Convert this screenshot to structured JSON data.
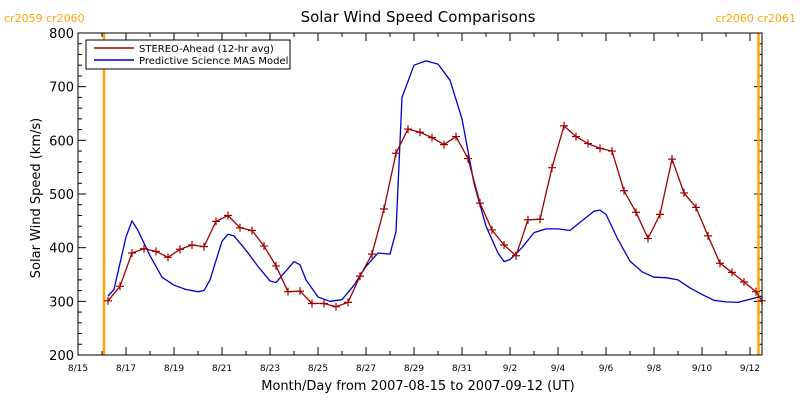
{
  "chart_data": {
    "type": "line",
    "title": "Solar Wind Speed Comparisons",
    "xlabel": "Month/Day from 2007-08-15 to 2007-09-12 (UT)",
    "ylabel": "Solar Wind Speed (km/s)",
    "xlim": [
      "2007-08-15T00:00",
      "2007-09-12T12:00"
    ],
    "ylim": [
      200,
      800
    ],
    "grid": false,
    "legend_position": "top-left",
    "x_ticks": [
      {
        "date": "2007-08-15",
        "label": "8/15"
      },
      {
        "date": "2007-08-17",
        "label": "8/17"
      },
      {
        "date": "2007-08-19",
        "label": "8/19"
      },
      {
        "date": "2007-08-21",
        "label": "8/21"
      },
      {
        "date": "2007-08-23",
        "label": "8/23"
      },
      {
        "date": "2007-08-25",
        "label": "8/25"
      },
      {
        "date": "2007-08-27",
        "label": "8/27"
      },
      {
        "date": "2007-08-29",
        "label": "8/29"
      },
      {
        "date": "2007-08-31",
        "label": "8/31"
      },
      {
        "date": "2007-09-02",
        "label": "9/2"
      },
      {
        "date": "2007-09-04",
        "label": "9/4"
      },
      {
        "date": "2007-09-06",
        "label": "9/6"
      },
      {
        "date": "2007-09-08",
        "label": "9/8"
      },
      {
        "date": "2007-09-10",
        "label": "9/10"
      },
      {
        "date": "2007-09-12",
        "label": "9/12"
      }
    ],
    "y_ticks": [
      200,
      300,
      400,
      500,
      600,
      700,
      800
    ],
    "carrington_markers": [
      {
        "date": "2007-08-16T02:00",
        "label": "cr2059 cr2060",
        "side": "left",
        "color": "#ffa500"
      },
      {
        "date": "2007-09-12T08:30",
        "label": "cr2060 cr2061",
        "side": "right",
        "color": "#ffa500"
      }
    ],
    "series": [
      {
        "name": "STEREO-Ahead (12-hr avg)",
        "color": "#a00000",
        "marker": "plus",
        "points": [
          [
            "2007-08-16T06:00",
            301
          ],
          [
            "2007-08-16T18:00",
            328
          ],
          [
            "2007-08-17T06:00",
            390
          ],
          [
            "2007-08-17T18:00",
            398
          ],
          [
            "2007-08-18T06:00",
            393
          ],
          [
            "2007-08-18T18:00",
            382
          ],
          [
            "2007-08-19T06:00",
            397
          ],
          [
            "2007-08-19T18:00",
            405
          ],
          [
            "2007-08-20T06:00",
            402
          ],
          [
            "2007-08-20T18:00",
            449
          ],
          [
            "2007-08-21T06:00",
            460
          ],
          [
            "2007-08-21T18:00",
            437
          ],
          [
            "2007-08-22T06:00",
            432
          ],
          [
            "2007-08-22T18:00",
            403
          ],
          [
            "2007-08-23T06:00",
            366
          ],
          [
            "2007-08-23T18:00",
            318
          ],
          [
            "2007-08-24T06:00",
            319
          ],
          [
            "2007-08-24T18:00",
            296
          ],
          [
            "2007-08-25T06:00",
            296
          ],
          [
            "2007-08-25T18:00",
            290
          ],
          [
            "2007-08-26T06:00",
            298
          ],
          [
            "2007-08-26T18:00",
            347
          ],
          [
            "2007-08-27T06:00",
            388
          ],
          [
            "2007-08-27T18:00",
            472
          ],
          [
            "2007-08-28T06:00",
            576
          ],
          [
            "2007-08-28T18:00",
            621
          ],
          [
            "2007-08-29T06:00",
            615
          ],
          [
            "2007-08-29T18:00",
            605
          ],
          [
            "2007-08-30T06:00",
            592
          ],
          [
            "2007-08-30T18:00",
            607
          ],
          [
            "2007-08-31T06:00",
            566
          ],
          [
            "2007-08-31T18:00",
            483
          ],
          [
            "2007-09-01T06:00",
            433
          ],
          [
            "2007-09-01T18:00",
            405
          ],
          [
            "2007-09-02T06:00",
            385
          ],
          [
            "2007-09-02T18:00",
            452
          ],
          [
            "2007-09-03T06:00",
            453
          ],
          [
            "2007-09-03T18:00",
            549
          ],
          [
            "2007-09-04T06:00",
            627
          ],
          [
            "2007-09-04T18:00",
            607
          ],
          [
            "2007-09-05T06:00",
            594
          ],
          [
            "2007-09-05T18:00",
            585
          ],
          [
            "2007-09-06T06:00",
            580
          ],
          [
            "2007-09-06T18:00",
            506
          ],
          [
            "2007-09-07T06:00",
            466
          ],
          [
            "2007-09-07T18:00",
            417
          ],
          [
            "2007-09-08T06:00",
            462
          ],
          [
            "2007-09-08T18:00",
            565
          ],
          [
            "2007-09-09T06:00",
            502
          ],
          [
            "2007-09-09T18:00",
            475
          ],
          [
            "2007-09-10T06:00",
            422
          ],
          [
            "2007-09-10T18:00",
            371
          ],
          [
            "2007-09-11T06:00",
            354
          ],
          [
            "2007-09-11T18:00",
            336
          ],
          [
            "2007-09-12T06:00",
            318
          ],
          [
            "2007-09-12T12:00",
            301
          ]
        ]
      },
      {
        "name": "Predictive Science MAS Model",
        "color": "#0000c8",
        "marker": "none",
        "points": [
          [
            "2007-08-16T06:00",
            310
          ],
          [
            "2007-08-16T12:00",
            322
          ],
          [
            "2007-08-17T00:00",
            420
          ],
          [
            "2007-08-17T06:00",
            450
          ],
          [
            "2007-08-17T12:00",
            432
          ],
          [
            "2007-08-18T00:00",
            385
          ],
          [
            "2007-08-18T12:00",
            345
          ],
          [
            "2007-08-19T00:00",
            330
          ],
          [
            "2007-08-19T12:00",
            322
          ],
          [
            "2007-08-20T00:00",
            318
          ],
          [
            "2007-08-20T06:00",
            320
          ],
          [
            "2007-08-20T12:00",
            340
          ],
          [
            "2007-08-21T00:00",
            412
          ],
          [
            "2007-08-21T06:00",
            425
          ],
          [
            "2007-08-21T12:00",
            422
          ],
          [
            "2007-08-22T00:00",
            395
          ],
          [
            "2007-08-22T12:00",
            365
          ],
          [
            "2007-08-23T00:00",
            338
          ],
          [
            "2007-08-23T06:00",
            335
          ],
          [
            "2007-08-23T12:00",
            348
          ],
          [
            "2007-08-24T00:00",
            374
          ],
          [
            "2007-08-24T06:00",
            368
          ],
          [
            "2007-08-24T12:00",
            340
          ],
          [
            "2007-08-25T00:00",
            308
          ],
          [
            "2007-08-25T12:00",
            300
          ],
          [
            "2007-08-26T00:00",
            303
          ],
          [
            "2007-08-26T12:00",
            330
          ],
          [
            "2007-08-27T00:00",
            365
          ],
          [
            "2007-08-27T12:00",
            390
          ],
          [
            "2007-08-28T00:00",
            388
          ],
          [
            "2007-08-28T06:00",
            430
          ],
          [
            "2007-08-28T12:00",
            680
          ],
          [
            "2007-08-29T00:00",
            740
          ],
          [
            "2007-08-29T12:00",
            748
          ],
          [
            "2007-08-30T00:00",
            742
          ],
          [
            "2007-08-30T12:00",
            712
          ],
          [
            "2007-08-31T00:00",
            640
          ],
          [
            "2007-08-31T12:00",
            520
          ],
          [
            "2007-09-01T00:00",
            440
          ],
          [
            "2007-09-01T12:00",
            390
          ],
          [
            "2007-09-01T18:00",
            374
          ],
          [
            "2007-09-02T00:00",
            378
          ],
          [
            "2007-09-02T12:00",
            400
          ],
          [
            "2007-09-03T00:00",
            428
          ],
          [
            "2007-09-03T12:00",
            435
          ],
          [
            "2007-09-04T00:00",
            435
          ],
          [
            "2007-09-04T12:00",
            432
          ],
          [
            "2007-09-05T00:00",
            450
          ],
          [
            "2007-09-05T12:00",
            468
          ],
          [
            "2007-09-05T18:00",
            470
          ],
          [
            "2007-09-06T00:00",
            462
          ],
          [
            "2007-09-06T12:00",
            415
          ],
          [
            "2007-09-07T00:00",
            375
          ],
          [
            "2007-09-07T12:00",
            355
          ],
          [
            "2007-09-08T00:00",
            345
          ],
          [
            "2007-09-08T12:00",
            344
          ],
          [
            "2007-09-09T00:00",
            340
          ],
          [
            "2007-09-09T12:00",
            325
          ],
          [
            "2007-09-10T00:00",
            313
          ],
          [
            "2007-09-10T12:00",
            302
          ],
          [
            "2007-09-11T00:00",
            299
          ],
          [
            "2007-09-11T12:00",
            298
          ],
          [
            "2007-09-12T00:00",
            304
          ],
          [
            "2007-09-12T12:00",
            310
          ]
        ]
      }
    ]
  }
}
